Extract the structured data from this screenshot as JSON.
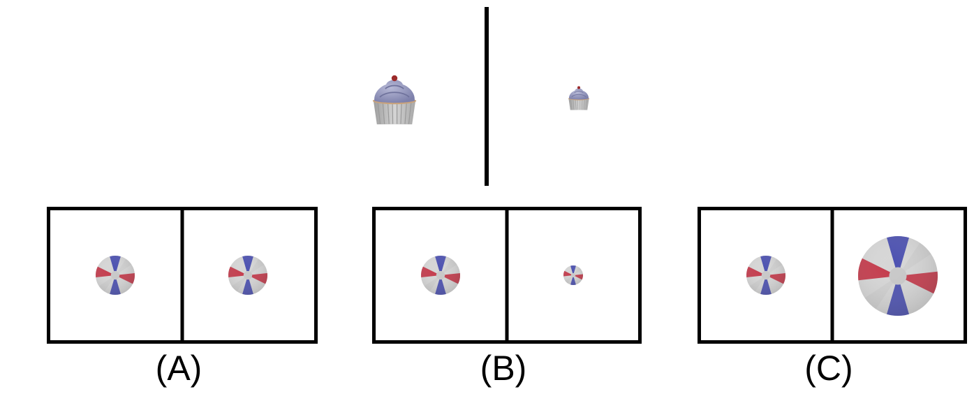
{
  "colors": {
    "line": "#000000",
    "ball_red": "#c4394a",
    "ball_blue": "#4a4fb0",
    "ball_white": "#d9d9d9",
    "cupcake_frosting": "#8c8fb8",
    "cupcake_wrapper": "#c2c2c2",
    "cherry": "#9c2b2b"
  },
  "icons": {
    "reference_left": "cupcake-icon",
    "reference_right": "cupcake-icon",
    "choice_object": "beach-ball-icon"
  },
  "options": [
    {
      "label": "(A)",
      "left_ball": "medium",
      "right_ball": "medium"
    },
    {
      "label": "(B)",
      "left_ball": "medium",
      "right_ball": "small"
    },
    {
      "label": "(C)",
      "left_ball": "medium",
      "right_ball": "large"
    }
  ]
}
